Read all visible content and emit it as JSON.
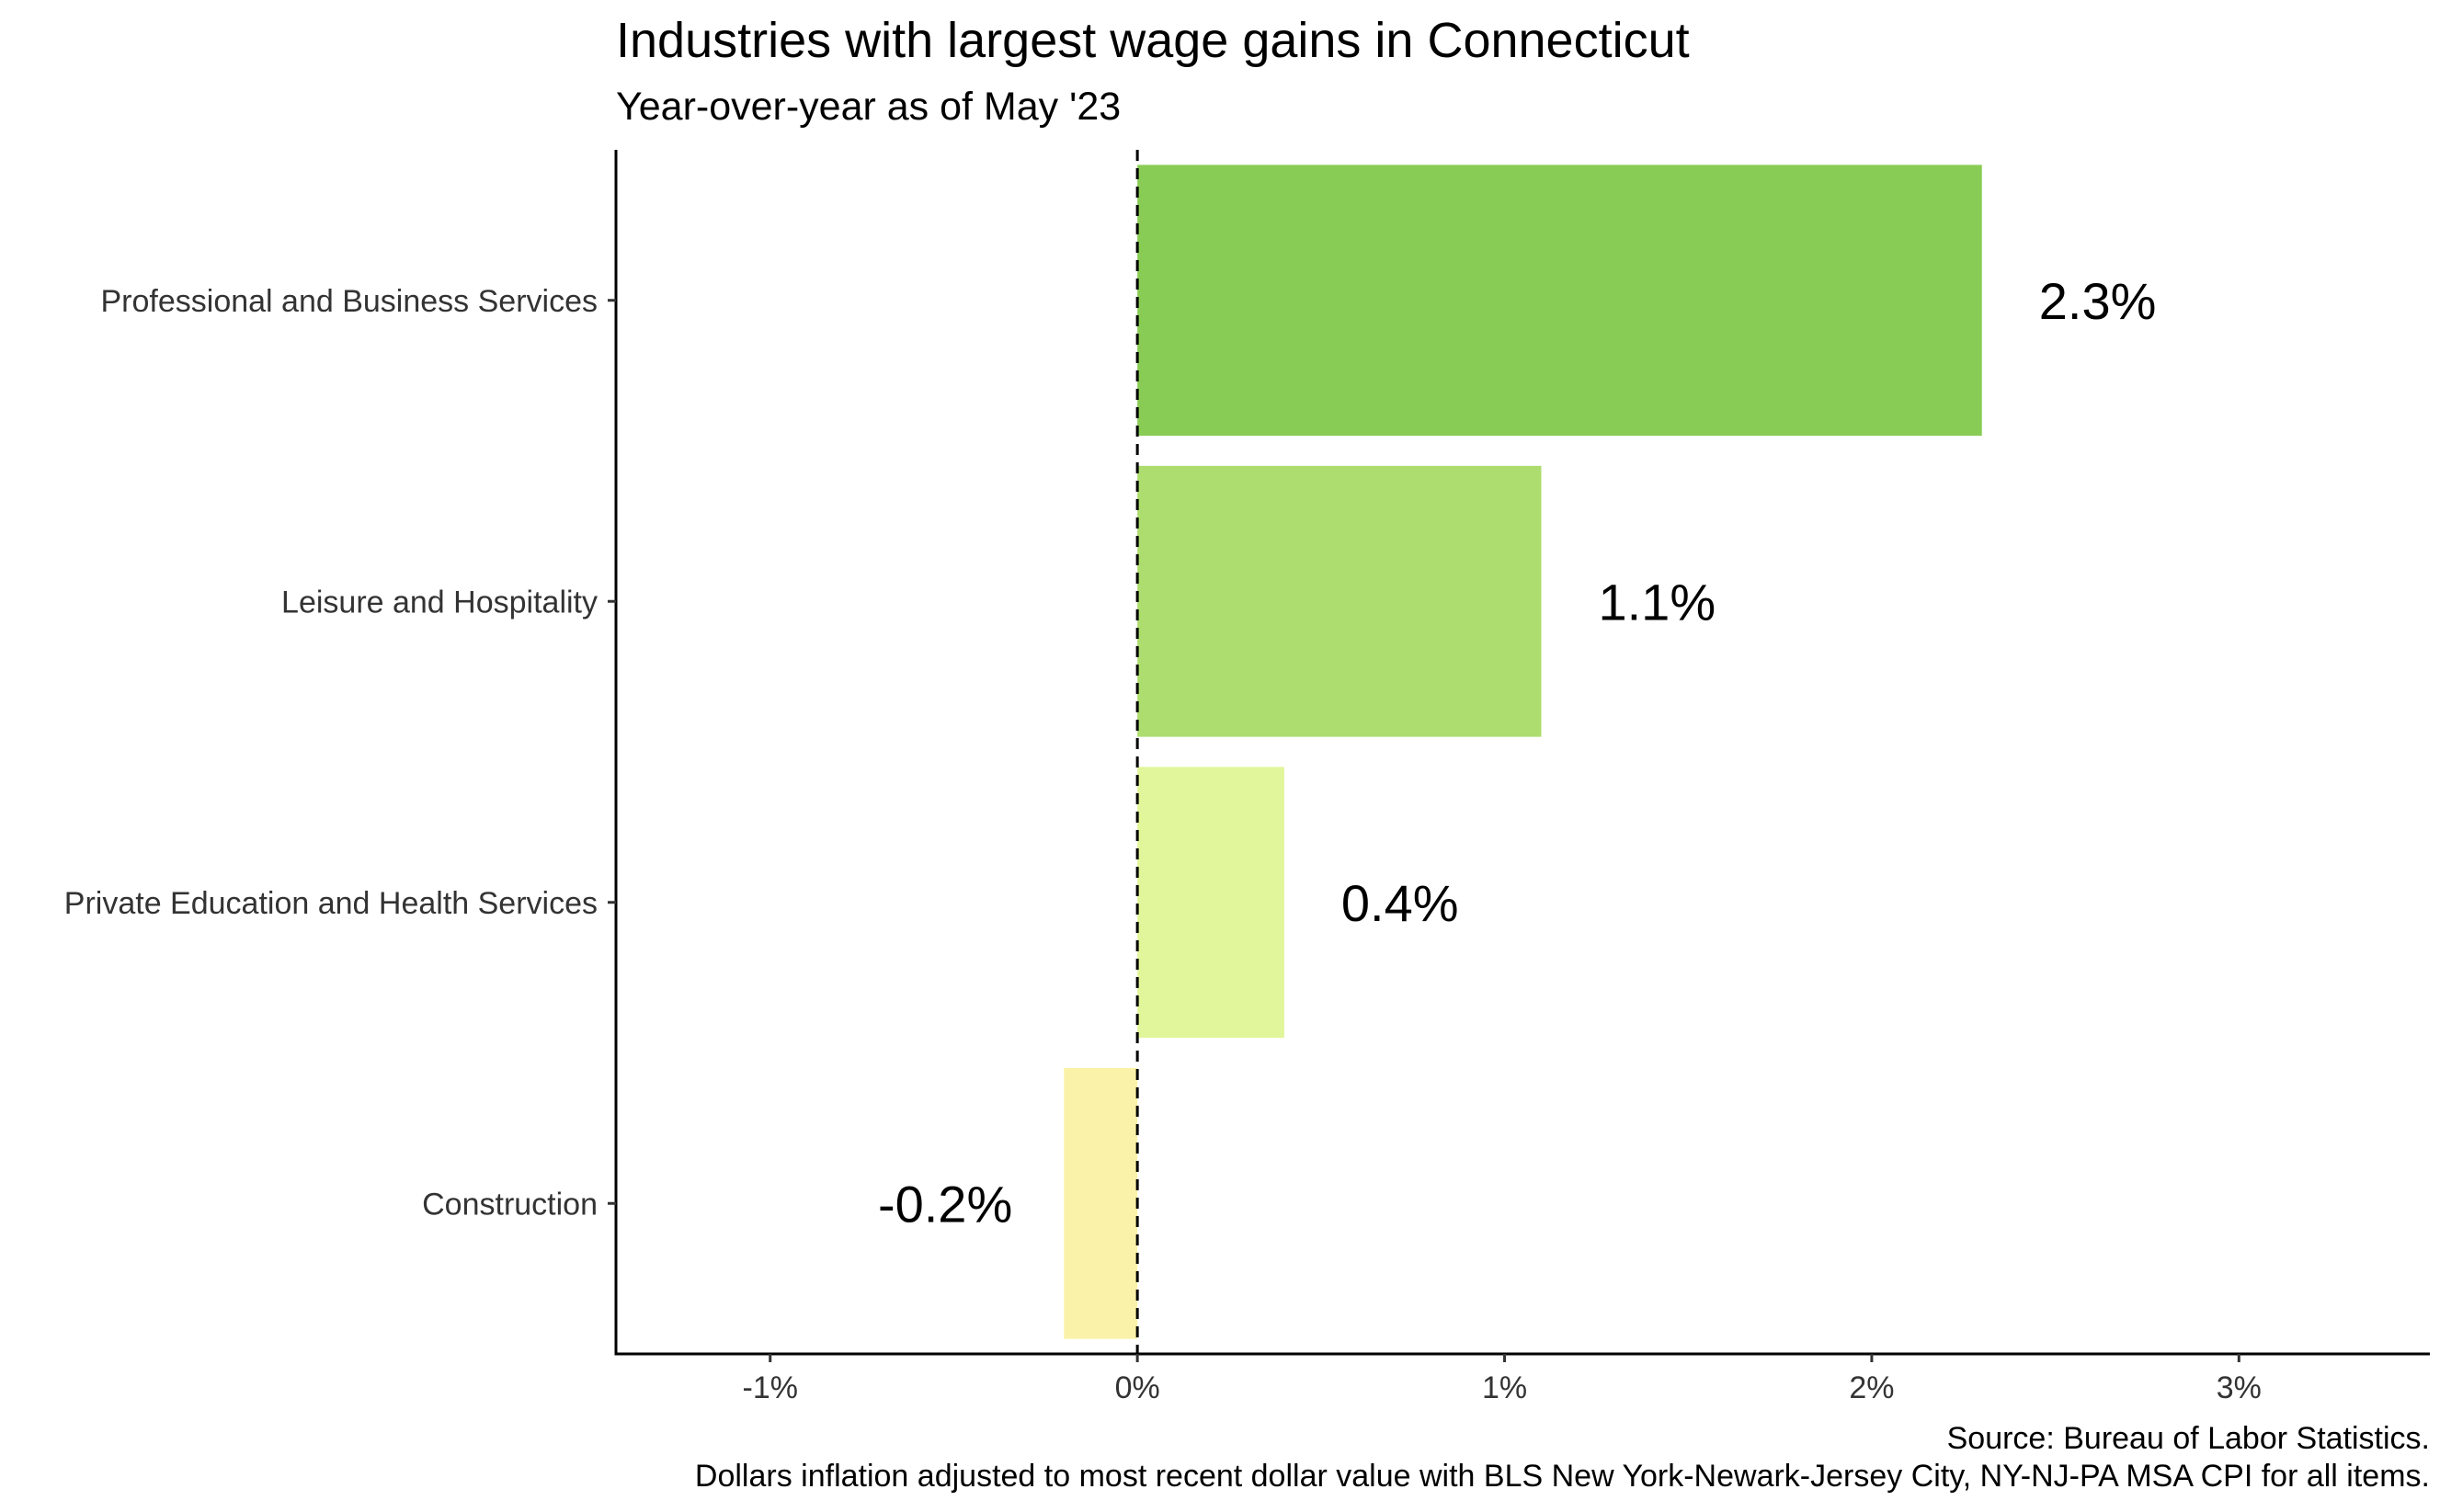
{
  "chart_data": {
    "type": "bar",
    "orientation": "horizontal",
    "title": "Industries with largest wage gains in Connecticut",
    "subtitle": "Year-over-year as of May '23",
    "categories": [
      "Professional and Business Services",
      "Leisure and Hospitality",
      "Private Education and Health Services",
      "Construction"
    ],
    "values": [
      2.3,
      1.1,
      0.4,
      -0.2
    ],
    "value_labels": [
      "2.3%",
      "1.1%",
      "0.4%",
      "-0.2%"
    ],
    "colors": [
      "#88cc55",
      "#addc6f",
      "#e1f59a",
      "#faf2a8"
    ],
    "xlim": [
      -1.42,
      3.52
    ],
    "x_ticks": [
      -1,
      0,
      1,
      2,
      3
    ],
    "x_tick_labels": [
      "-1%",
      "0%",
      "1%",
      "2%",
      "3%"
    ],
    "reference_line": {
      "x": 0,
      "style": "dashed"
    },
    "grid": false,
    "caption": [
      "Source: Bureau of Labor Statistics.",
      "Dollars inflation adjusted to most recent dollar value with BLS New York-Newark-Jersey City, NY-NJ-PA MSA CPI for all items."
    ]
  }
}
